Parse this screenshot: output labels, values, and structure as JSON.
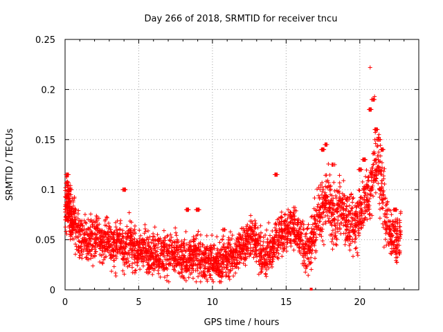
{
  "chart_data": {
    "type": "scatter",
    "title": "Day 266 of 2018, SRMTID for receiver tncu",
    "xlabel": "GPS time / hours",
    "ylabel": "SRMTID / TECUs",
    "xlim": [
      0,
      24
    ],
    "ylim": [
      0,
      0.25
    ],
    "xticks": [
      0,
      5,
      10,
      15,
      20
    ],
    "yticks": [
      0,
      0.05,
      0.1,
      0.15,
      0.2,
      0.25
    ],
    "xtick_labels": [
      "0",
      "5",
      "10",
      "15",
      "20"
    ],
    "ytick_labels": [
      "0",
      "0.05",
      "0.1",
      "0.15",
      "0.2",
      "0.25"
    ],
    "grid": true,
    "marker": "+",
    "color": "#ff0000",
    "series": [
      {
        "name": "SRMTID",
        "x": [
          0.0,
          0.1,
          0.2,
          0.3,
          0.4,
          0.5,
          0.6,
          0.8,
          1.0,
          1.2,
          1.4,
          1.6,
          1.8,
          2.0,
          2.2,
          2.4,
          2.6,
          2.8,
          3.0,
          3.2,
          3.4,
          3.6,
          3.8,
          4.0,
          4.2,
          4.4,
          4.6,
          4.8,
          5.0,
          5.2,
          5.4,
          5.6,
          5.8,
          6.0,
          6.2,
          6.4,
          6.6,
          6.8,
          7.0,
          7.2,
          7.4,
          7.6,
          7.8,
          8.0,
          8.2,
          8.4,
          8.6,
          8.8,
          9.0,
          9.2,
          9.4,
          9.6,
          9.8,
          10.0,
          10.2,
          10.4,
          10.6,
          10.8,
          11.0,
          11.2,
          11.4,
          11.6,
          11.8,
          12.0,
          12.2,
          12.4,
          12.6,
          12.8,
          13.0,
          13.2,
          13.4,
          13.6,
          13.8,
          14.0,
          14.2,
          14.4,
          14.6,
          14.8,
          15.0,
          15.2,
          15.4,
          15.6,
          15.8,
          16.0,
          16.2,
          16.4,
          16.6,
          16.8,
          17.0,
          17.2,
          17.4,
          17.6,
          17.8,
          18.0,
          18.2,
          18.4,
          18.6,
          18.8,
          19.0,
          19.2,
          19.4,
          19.6,
          19.8,
          20.0,
          20.2,
          20.4,
          20.6,
          20.8,
          21.0,
          21.2,
          21.4,
          21.6,
          21.8,
          22.0,
          22.2,
          22.4,
          22.6,
          22.8,
          0.15,
          0.35,
          4.0,
          8.3,
          9.0,
          10.8,
          14.3,
          17.5,
          17.7,
          18.2,
          20.0,
          20.3,
          20.7,
          20.9,
          21.1,
          21.3,
          21.5,
          22.4
        ],
        "y": [
          0.08,
          0.095,
          0.085,
          0.078,
          0.07,
          0.065,
          0.072,
          0.06,
          0.055,
          0.05,
          0.052,
          0.045,
          0.05,
          0.048,
          0.055,
          0.05,
          0.045,
          0.052,
          0.05,
          0.045,
          0.042,
          0.048,
          0.05,
          0.04,
          0.045,
          0.048,
          0.042,
          0.04,
          0.038,
          0.04,
          0.042,
          0.035,
          0.038,
          0.036,
          0.04,
          0.035,
          0.034,
          0.036,
          0.035,
          0.038,
          0.032,
          0.035,
          0.03,
          0.028,
          0.032,
          0.034,
          0.03,
          0.036,
          0.034,
          0.03,
          0.032,
          0.028,
          0.03,
          0.03,
          0.028,
          0.025,
          0.03,
          0.032,
          0.03,
          0.032,
          0.035,
          0.036,
          0.04,
          0.045,
          0.048,
          0.05,
          0.055,
          0.05,
          0.045,
          0.04,
          0.035,
          0.032,
          0.038,
          0.04,
          0.045,
          0.05,
          0.06,
          0.055,
          0.058,
          0.06,
          0.065,
          0.06,
          0.055,
          0.05,
          0.045,
          0.042,
          0.04,
          0.055,
          0.06,
          0.075,
          0.08,
          0.085,
          0.09,
          0.08,
          0.075,
          0.07,
          0.085,
          0.08,
          0.075,
          0.07,
          0.065,
          0.06,
          0.07,
          0.08,
          0.085,
          0.09,
          0.095,
          0.11,
          0.12,
          0.13,
          0.11,
          0.09,
          0.07,
          0.06,
          0.055,
          0.05,
          0.048,
          0.055,
          0.115,
          0.1,
          0.1,
          0.08,
          0.08,
          0.06,
          0.115,
          0.14,
          0.145,
          0.125,
          0.12,
          0.13,
          0.18,
          0.19,
          0.16,
          0.15,
          0.14,
          0.08
        ],
        "density": [
          3,
          4,
          4,
          4,
          3,
          3,
          3,
          3,
          3,
          3,
          3,
          3,
          3,
          3,
          3,
          3,
          3,
          3,
          3,
          3,
          3,
          3,
          3,
          3,
          3,
          3,
          3,
          3,
          3,
          3,
          3,
          3,
          3,
          3,
          3,
          3,
          3,
          3,
          3,
          3,
          3,
          3,
          3,
          3,
          3,
          3,
          3,
          3,
          3,
          3,
          3,
          3,
          3,
          3,
          3,
          3,
          3,
          3,
          3,
          3,
          3,
          3,
          3,
          3,
          3,
          3,
          3,
          3,
          3,
          3,
          3,
          3,
          3,
          3,
          3,
          3,
          3,
          3,
          3,
          3,
          3,
          3,
          3,
          3,
          3,
          3,
          3,
          3,
          3,
          3,
          3,
          3,
          3,
          3,
          3,
          3,
          3,
          3,
          3,
          3,
          3,
          3,
          3,
          3,
          3,
          3,
          3,
          3,
          3,
          3,
          3,
          3,
          3,
          3,
          3,
          3,
          3,
          3,
          1,
          1,
          1,
          1,
          1,
          1,
          1,
          1,
          1,
          1,
          1,
          1,
          1,
          1,
          1,
          1,
          1,
          1
        ],
        "spread": [
          0.015,
          0.015,
          0.015,
          0.015,
          0.015,
          0.015,
          0.015,
          0.015,
          0.015,
          0.015,
          0.015,
          0.015,
          0.015,
          0.015,
          0.015,
          0.015,
          0.015,
          0.015,
          0.015,
          0.015,
          0.015,
          0.015,
          0.015,
          0.015,
          0.015,
          0.015,
          0.015,
          0.015,
          0.015,
          0.015,
          0.015,
          0.015,
          0.015,
          0.015,
          0.015,
          0.015,
          0.015,
          0.015,
          0.015,
          0.015,
          0.015,
          0.015,
          0.015,
          0.015,
          0.015,
          0.015,
          0.015,
          0.015,
          0.015,
          0.015,
          0.015,
          0.015,
          0.015,
          0.015,
          0.015,
          0.015,
          0.015,
          0.015,
          0.015,
          0.015,
          0.015,
          0.015,
          0.015,
          0.015,
          0.015,
          0.015,
          0.015,
          0.015,
          0.015,
          0.015,
          0.015,
          0.015,
          0.015,
          0.015,
          0.015,
          0.015,
          0.015,
          0.015,
          0.015,
          0.015,
          0.015,
          0.015,
          0.015,
          0.015,
          0.015,
          0.015,
          0.015,
          0.015,
          0.02,
          0.02,
          0.02,
          0.02,
          0.02,
          0.02,
          0.02,
          0.02,
          0.02,
          0.02,
          0.02,
          0.02,
          0.02,
          0.02,
          0.02,
          0.02,
          0.02,
          0.02,
          0.02,
          0.02,
          0.02,
          0.025,
          0.025,
          0.025,
          0.02,
          0.015,
          0.015,
          0.015,
          0.015,
          0.015,
          0.0,
          0.0,
          0.0,
          0.0,
          0.0,
          0.0,
          0.0,
          0.0,
          0.0,
          0.0,
          0.0,
          0.0,
          0.0,
          0.0,
          0.0,
          0.0,
          0.0,
          0.0
        ],
        "outliers": [
          {
            "x": 20.7,
            "y": 0.222
          },
          {
            "x": 21.0,
            "y": 0.193
          },
          {
            "x": 16.7,
            "y": 0.0
          }
        ]
      }
    ]
  }
}
